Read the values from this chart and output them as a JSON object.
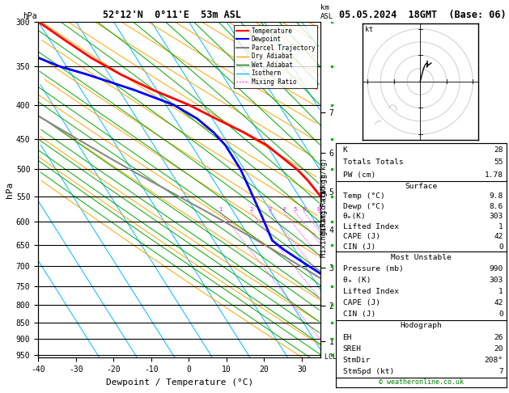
{
  "title_left": "52°12'N  0°11'E  53m ASL",
  "title_right": "05.05.2024  18GMT  (Base: 06)",
  "xlabel": "Dewpoint / Temperature (°C)",
  "ylabel_left": "hPa",
  "pressure_levels": [
    300,
    350,
    400,
    450,
    500,
    550,
    600,
    650,
    700,
    750,
    800,
    850,
    900,
    950
  ],
  "xlim": [
    -40,
    35
  ],
  "xticks": [
    -40,
    -30,
    -20,
    -10,
    0,
    10,
    20,
    30
  ],
  "km_asl_pressures": [
    908,
    801,
    703,
    617,
    540,
    472,
    411
  ],
  "km_asl_labels": [
    1,
    2,
    3,
    4,
    5,
    6,
    7
  ],
  "lcl_pressure": 958,
  "pmin": 300,
  "pmax": 960,
  "skew_factor": 0.75,
  "temp_profile_p": [
    300,
    320,
    340,
    360,
    380,
    400,
    420,
    440,
    450,
    460,
    470,
    480,
    490,
    500,
    520,
    540,
    560,
    580,
    600,
    620,
    640,
    660,
    680,
    700,
    720,
    740,
    760,
    780,
    800,
    820,
    840,
    860,
    880,
    900,
    920,
    940,
    958
  ],
  "temp_profile_t": [
    -40,
    -36,
    -32,
    -27,
    -21,
    -14,
    -9,
    -4,
    -2,
    0,
    1,
    2,
    3,
    4,
    5,
    5.5,
    6,
    6.5,
    6.8,
    7,
    7.2,
    7.5,
    8,
    8.5,
    9,
    9.2,
    9.3,
    9.4,
    9.5,
    9.6,
    9.7,
    9.8,
    9.9,
    9.9,
    9.9,
    9.9,
    9.8
  ],
  "dewp_profile_p": [
    300,
    320,
    340,
    350,
    360,
    380,
    400,
    420,
    440,
    460,
    470,
    480,
    490,
    500,
    520,
    540,
    560,
    580,
    600,
    620,
    640,
    660,
    680,
    700,
    720,
    740,
    760,
    780,
    800,
    820,
    840,
    860,
    880,
    900,
    920,
    940,
    958
  ],
  "dewp_profile_t": [
    -55,
    -52,
    -46,
    -42,
    -36,
    -26,
    -18,
    -14,
    -12,
    -11,
    -11,
    -11,
    -11,
    -11,
    -11.5,
    -12,
    -12.5,
    -13,
    -13.5,
    -14,
    -14.5,
    -13,
    -11,
    -9,
    -7,
    -5,
    -3,
    -2,
    -1.5,
    -1,
    -0.5,
    0,
    1,
    2,
    3,
    4,
    8.6
  ],
  "parcel_profile_p": [
    958,
    940,
    920,
    900,
    880,
    860,
    840,
    820,
    800,
    780,
    760,
    740,
    720,
    700,
    680,
    660,
    640,
    620,
    600,
    580,
    560,
    540,
    520,
    500,
    480,
    460,
    440,
    420,
    400,
    380,
    360,
    340,
    320,
    300
  ],
  "parcel_profile_t": [
    9.8,
    8.5,
    7.0,
    5.5,
    4.0,
    2.5,
    1.0,
    -0.5,
    -2.0,
    -3.5,
    -5.2,
    -7.0,
    -9.0,
    -11.2,
    -13.5,
    -16.0,
    -18.5,
    -21.2,
    -24.0,
    -27.0,
    -30.2,
    -33.5,
    -37.0,
    -40.5,
    -44.0,
    -47.5,
    -51.2,
    -55.0,
    -58.8,
    -62.5,
    -66.5,
    -70.5,
    -74.8,
    -79.2
  ],
  "temp_color": "#ff0000",
  "dewp_color": "#0000ff",
  "parcel_color": "#888888",
  "isotherm_color": "#00bbff",
  "dry_adiabat_color": "#ffa500",
  "wet_adiabat_color": "#00aa00",
  "mixing_ratio_color": "#ff00ff",
  "info_K": 28,
  "info_TT": 55,
  "info_PW": 1.78,
  "info_sfc_temp": 9.8,
  "info_sfc_dewp": 8.6,
  "info_sfc_theta_e": 303,
  "info_sfc_li": 1,
  "info_sfc_cape": 42,
  "info_sfc_cin": 0,
  "info_mu_pres": 990,
  "info_mu_theta_e": 303,
  "info_mu_li": 1,
  "info_mu_cape": 42,
  "info_mu_cin": 0,
  "info_hodo_eh": 26,
  "info_hodo_sreh": 20,
  "info_hodo_stmdir": 208,
  "info_hodo_stmspd": 7
}
